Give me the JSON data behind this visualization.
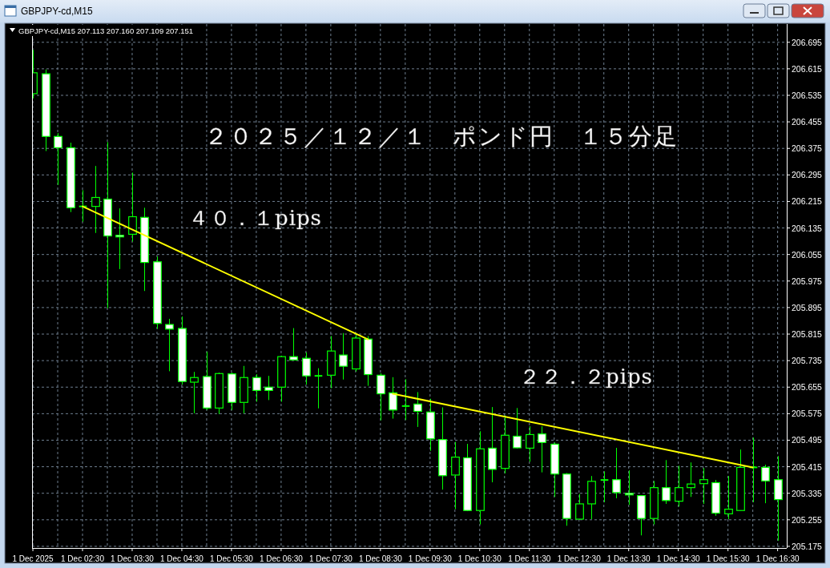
{
  "chart_data": {
    "type": "candlestick",
    "title": "２０２５／１２／１　ポンド円　１５分足",
    "subtitle": "GBPJPY-cd,M15 207.113 207.160 207.109 207.151",
    "annotations": [
      "GBPJPY-cd,M15",
      "４０．１pips",
      "２２．２pips"
    ],
    "x": [
      "2025-12-01T01:30",
      "2025-12-01T01:45",
      "2025-12-01T02:00",
      "2025-12-01T02:15",
      "2025-12-01T02:30",
      "2025-12-01T02:45",
      "2025-12-01T03:00",
      "2025-12-01T03:15",
      "2025-12-01T03:30",
      "2025-12-01T03:45",
      "2025-12-01T04:00",
      "2025-12-01T04:15",
      "2025-12-01T04:30",
      "2025-12-01T04:45",
      "2025-12-01T05:00",
      "2025-12-01T05:15",
      "2025-12-01T05:30",
      "2025-12-01T05:45",
      "2025-12-01T06:00",
      "2025-12-01T06:15",
      "2025-12-01T06:30",
      "2025-12-01T06:45",
      "2025-12-01T07:00",
      "2025-12-01T07:15",
      "2025-12-01T07:30",
      "2025-12-01T07:45",
      "2025-12-01T08:00",
      "2025-12-01T08:15",
      "2025-12-01T08:30",
      "2025-12-01T08:45",
      "2025-12-01T09:00",
      "2025-12-01T09:15",
      "2025-12-01T09:30",
      "2025-12-01T09:45",
      "2025-12-01T10:00",
      "2025-12-01T10:15",
      "2025-12-01T10:30",
      "2025-12-01T10:45",
      "2025-12-01T11:00",
      "2025-12-01T11:15",
      "2025-12-01T11:30",
      "2025-12-01T11:45",
      "2025-12-01T12:00",
      "2025-12-01T12:15",
      "2025-12-01T12:30",
      "2025-12-01T12:45",
      "2025-12-01T13:00",
      "2025-12-01T13:15",
      "2025-12-01T13:30",
      "2025-12-01T13:45",
      "2025-12-01T14:00",
      "2025-12-01T14:15",
      "2025-12-01T14:30",
      "2025-12-01T14:45",
      "2025-12-01T15:00",
      "2025-12-01T15:15",
      "2025-12-01T15:30",
      "2025-12-01T15:45",
      "2025-12-01T16:00",
      "2025-12-01T16:15",
      "2025-12-01T16:30"
    ],
    "ohlc": [
      [
        206.54,
        206.672,
        206.526,
        206.603
      ],
      [
        206.6,
        206.613,
        206.367,
        206.411
      ],
      [
        206.411,
        206.421,
        206.265,
        206.377
      ],
      [
        206.377,
        206.392,
        206.183,
        206.196
      ],
      [
        206.2,
        206.249,
        206.154,
        206.2
      ],
      [
        206.2,
        206.322,
        206.12,
        206.227
      ],
      [
        206.222,
        206.394,
        205.893,
        206.111
      ],
      [
        206.113,
        206.194,
        206.011,
        206.108
      ],
      [
        206.116,
        206.302,
        206.094,
        206.169
      ],
      [
        206.167,
        206.196,
        205.945,
        206.031
      ],
      [
        206.033,
        206.049,
        205.831,
        205.847
      ],
      [
        205.844,
        205.861,
        205.703,
        205.83
      ],
      [
        205.832,
        205.868,
        205.663,
        205.672
      ],
      [
        205.67,
        205.701,
        205.576,
        205.684
      ],
      [
        205.687,
        205.762,
        205.586,
        205.592
      ],
      [
        205.592,
        205.699,
        205.574,
        205.696
      ],
      [
        205.695,
        205.699,
        205.586,
        205.609
      ],
      [
        205.609,
        205.719,
        205.576,
        205.684
      ],
      [
        205.684,
        205.694,
        205.611,
        205.645
      ],
      [
        205.655,
        205.689,
        205.616,
        205.645
      ],
      [
        205.655,
        205.75,
        205.611,
        205.747
      ],
      [
        205.747,
        205.833,
        205.737,
        205.737
      ],
      [
        205.742,
        205.76,
        205.663,
        205.689
      ],
      [
        205.689,
        205.712,
        205.591,
        205.689
      ],
      [
        205.691,
        205.809,
        205.652,
        205.764
      ],
      [
        205.752,
        205.818,
        205.678,
        205.718
      ],
      [
        205.71,
        205.817,
        205.702,
        205.803
      ],
      [
        205.8,
        205.809,
        205.659,
        205.693
      ],
      [
        205.691,
        205.697,
        205.555,
        205.635
      ],
      [
        205.638,
        205.685,
        205.56,
        205.586
      ],
      [
        205.598,
        205.679,
        205.556,
        205.598
      ],
      [
        205.604,
        205.64,
        205.535,
        205.582
      ],
      [
        205.58,
        205.62,
        205.463,
        205.499
      ],
      [
        205.497,
        205.594,
        205.346,
        205.388
      ],
      [
        205.39,
        205.49,
        205.287,
        205.444
      ],
      [
        205.442,
        205.484,
        205.281,
        205.283
      ],
      [
        205.283,
        205.522,
        205.241,
        205.469
      ],
      [
        205.471,
        205.595,
        205.368,
        205.407
      ],
      [
        205.41,
        205.57,
        205.395,
        205.51
      ],
      [
        205.507,
        205.592,
        205.47,
        205.472
      ],
      [
        205.471,
        205.537,
        205.43,
        205.512
      ],
      [
        205.514,
        205.537,
        205.398,
        205.488
      ],
      [
        205.483,
        205.488,
        205.324,
        205.393
      ],
      [
        205.393,
        205.396,
        205.237,
        205.259
      ],
      [
        205.257,
        205.333,
        205.255,
        205.303
      ],
      [
        205.303,
        205.387,
        205.257,
        205.371
      ],
      [
        205.375,
        205.401,
        205.308,
        205.375
      ],
      [
        205.376,
        205.472,
        205.32,
        205.337
      ],
      [
        205.335,
        205.404,
        205.3,
        205.33
      ],
      [
        205.328,
        205.328,
        205.208,
        205.259
      ],
      [
        205.259,
        205.372,
        205.241,
        205.352
      ],
      [
        205.352,
        205.435,
        205.303,
        205.313
      ],
      [
        205.311,
        205.418,
        205.295,
        205.352
      ],
      [
        205.352,
        205.428,
        205.324,
        205.363
      ],
      [
        205.364,
        205.411,
        205.303,
        205.376
      ],
      [
        205.367,
        205.375,
        205.267,
        205.275
      ],
      [
        205.273,
        205.387,
        205.257,
        205.287
      ],
      [
        205.283,
        205.467,
        205.283,
        205.413
      ],
      [
        205.413,
        205.503,
        205.308,
        205.413
      ],
      [
        205.413,
        205.421,
        205.305,
        205.372
      ],
      [
        205.376,
        205.447,
        205.192,
        205.316
      ]
    ],
    "color": "#00ff00",
    "series": [
      {
        "type": "line",
        "x": [
          "2025-12-01T02:30",
          "2025-12-01T08:15"
        ],
        "values": [
          206.2,
          205.799
        ],
        "color": "#ffff00"
      },
      {
        "type": "line",
        "x": [
          "2025-12-01T08:45",
          "2025-12-01T16:00"
        ],
        "values": [
          205.635,
          205.413
        ],
        "color": "#ffff00"
      }
    ],
    "xlim": [
      "2025-12-01T01:29",
      "2025-12-01T16:41"
    ],
    "ylim": [
      205.17,
      206.75
    ],
    "xticks": [
      {
        "value": "2025-12-01T01:30",
        "label": "1 Dec 2025"
      },
      {
        "value": "2025-12-01T02:00",
        "label": null
      },
      {
        "value": "2025-12-01T02:30",
        "label": "1 Dec 02:30"
      },
      {
        "value": "2025-12-01T03:00",
        "label": null
      },
      {
        "value": "2025-12-01T03:30",
        "label": "1 Dec 03:30"
      },
      {
        "value": "2025-12-01T04:00",
        "label": null
      },
      {
        "value": "2025-12-01T04:30",
        "label": "1 Dec 04:30"
      },
      {
        "value": "2025-12-01T05:00",
        "label": null
      },
      {
        "value": "2025-12-01T05:30",
        "label": "1 Dec 05:30"
      },
      {
        "value": "2025-12-01T06:00",
        "label": null
      },
      {
        "value": "2025-12-01T06:30",
        "label": "1 Dec 06:30"
      },
      {
        "value": "2025-12-01T07:00",
        "label": null
      },
      {
        "value": "2025-12-01T07:30",
        "label": "1 Dec 07:30"
      },
      {
        "value": "2025-12-01T08:00",
        "label": null
      },
      {
        "value": "2025-12-01T08:30",
        "label": "1 Dec 08:30"
      },
      {
        "value": "2025-12-01T09:00",
        "label": null
      },
      {
        "value": "2025-12-01T09:30",
        "label": "1 Dec 09:30"
      },
      {
        "value": "2025-12-01T10:00",
        "label": null
      },
      {
        "value": "2025-12-01T10:30",
        "label": "1 Dec 10:30"
      },
      {
        "value": "2025-12-01T11:00",
        "label": null
      },
      {
        "value": "2025-12-01T11:30",
        "label": "1 Dec 11:30"
      },
      {
        "value": "2025-12-01T12:00",
        "label": null
      },
      {
        "value": "2025-12-01T12:30",
        "label": "1 Dec 12:30"
      },
      {
        "value": "2025-12-01T13:00",
        "label": null
      },
      {
        "value": "2025-12-01T13:30",
        "label": "1 Dec 13:30"
      },
      {
        "value": "2025-12-01T14:00",
        "label": null
      },
      {
        "value": "2025-12-01T14:30",
        "label": "1 Dec 14:30"
      },
      {
        "value": "2025-12-01T15:00",
        "label": null
      },
      {
        "value": "2025-12-01T15:30",
        "label": "1 Dec 15:30"
      },
      {
        "value": "2025-12-01T16:00",
        "label": null
      },
      {
        "value": "2025-12-01T16:30",
        "label": "1 Dec 16:30"
      }
    ],
    "yticks": [
      206.695,
      206.615,
      206.535,
      206.455,
      206.375,
      206.295,
      206.215,
      206.135,
      206.055,
      205.975,
      205.895,
      205.815,
      205.735,
      205.655,
      205.575,
      205.495,
      205.415,
      205.335,
      205.255,
      205.175
    ],
    "grid": true
  }
}
